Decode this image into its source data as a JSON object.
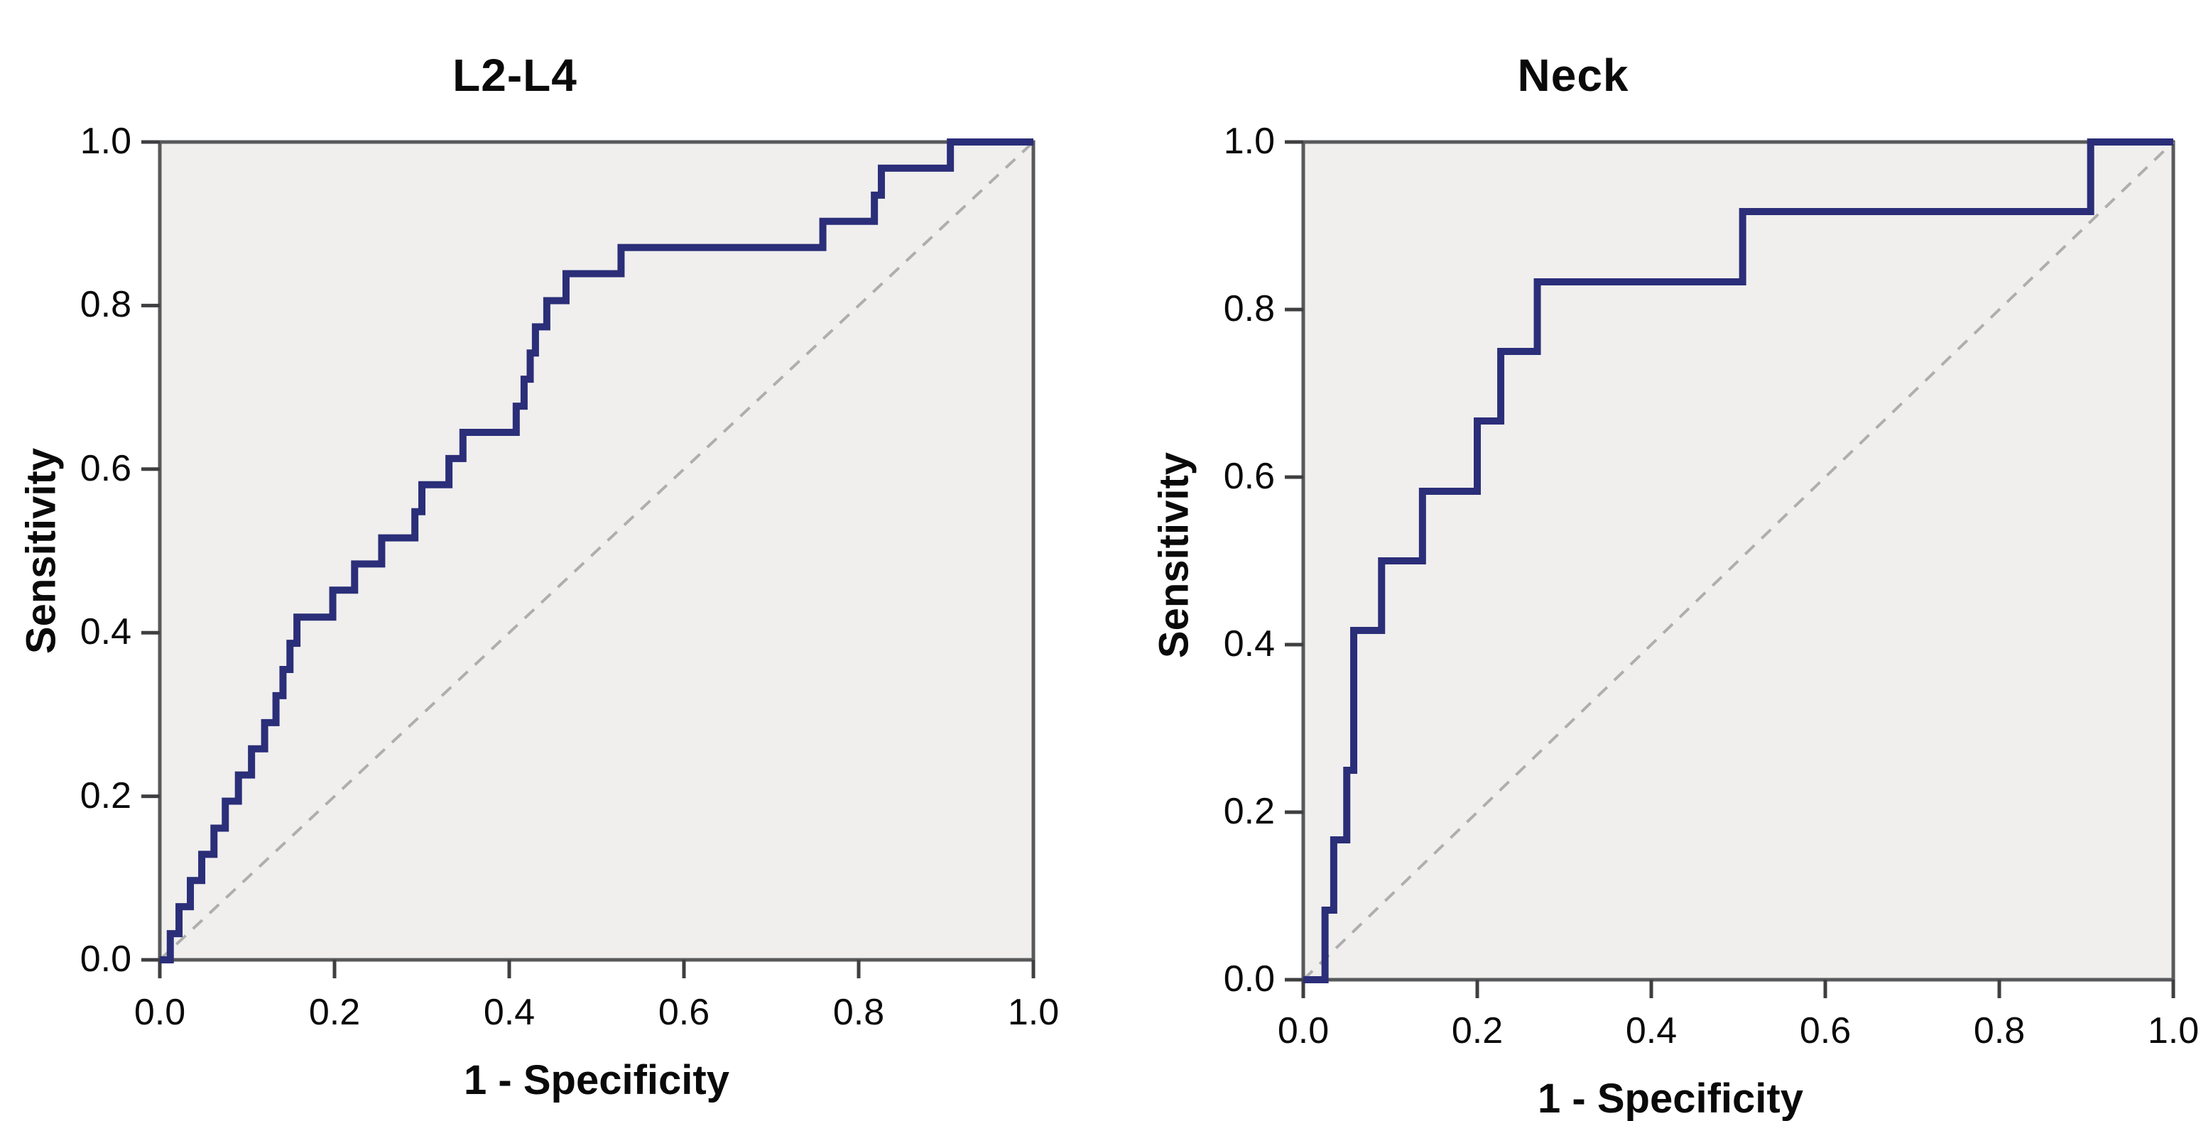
{
  "figure": {
    "description": "Two ROC curve panels"
  },
  "colors": {
    "curve": "#2b2e78",
    "diagonal": "#aeaeae",
    "plot_background": "#f0efee",
    "frame": "#58595b",
    "tick": "#3f3f41",
    "text": "#0a0a0a",
    "page_background": "#ffffff"
  },
  "charts": [
    {
      "title": "L2-L4",
      "x_axis_label": "1 - Specificity",
      "y_axis_label": "Sensitivity",
      "x_tick_labels": [
        "0.0",
        "0.2",
        "0.4",
        "0.6",
        "0.8",
        "1.0"
      ],
      "y_tick_labels": [
        "1.0",
        "0.8",
        "0.6",
        "0.4",
        "0.2",
        "0.0"
      ]
    },
    {
      "title": "Neck",
      "x_axis_label": "1 - Specificity",
      "y_axis_label": "Sensitivity",
      "x_tick_labels": [
        "0.0",
        "0.2",
        "0.4",
        "0.6",
        "0.8",
        "1.0"
      ],
      "y_tick_labels": [
        "1.0",
        "0.8",
        "0.6",
        "0.4",
        "0.2",
        "0.0"
      ]
    }
  ],
  "chart_data": [
    {
      "type": "line",
      "title": "L2-L4",
      "xlabel": "1 - Specificity",
      "ylabel": "Sensitivity",
      "xlim": [
        0,
        1
      ],
      "ylim": [
        0,
        1
      ],
      "x_tick_values": [
        0,
        0.2,
        0.4,
        0.6,
        0.8,
        1.0
      ],
      "y_tick_values": [
        0,
        0.2,
        0.4,
        0.6,
        0.8,
        1.0
      ],
      "grid": false,
      "legend": "none",
      "series": [
        {
          "name": "ROC curve",
          "style": "solid-step",
          "points": [
            [
              0,
              0
            ],
            [
              0.012,
              0
            ],
            [
              0.012,
              0.032
            ],
            [
              0.022,
              0.032
            ],
            [
              0.022,
              0.065
            ],
            [
              0.035,
              0.065
            ],
            [
              0.035,
              0.097
            ],
            [
              0.048,
              0.097
            ],
            [
              0.048,
              0.129
            ],
            [
              0.062,
              0.129
            ],
            [
              0.062,
              0.161
            ],
            [
              0.075,
              0.161
            ],
            [
              0.075,
              0.194
            ],
            [
              0.09,
              0.194
            ],
            [
              0.09,
              0.226
            ],
            [
              0.105,
              0.226
            ],
            [
              0.105,
              0.258
            ],
            [
              0.12,
              0.258
            ],
            [
              0.12,
              0.29
            ],
            [
              0.133,
              0.29
            ],
            [
              0.133,
              0.323
            ],
            [
              0.141,
              0.323
            ],
            [
              0.141,
              0.355
            ],
            [
              0.149,
              0.355
            ],
            [
              0.149,
              0.387
            ],
            [
              0.157,
              0.387
            ],
            [
              0.157,
              0.419
            ],
            [
              0.198,
              0.419
            ],
            [
              0.198,
              0.452
            ],
            [
              0.223,
              0.452
            ],
            [
              0.223,
              0.484
            ],
            [
              0.254,
              0.484
            ],
            [
              0.254,
              0.516
            ],
            [
              0.292,
              0.516
            ],
            [
              0.292,
              0.548
            ],
            [
              0.3,
              0.548
            ],
            [
              0.3,
              0.581
            ],
            [
              0.331,
              0.581
            ],
            [
              0.331,
              0.613
            ],
            [
              0.347,
              0.613
            ],
            [
              0.347,
              0.645
            ],
            [
              0.408,
              0.645
            ],
            [
              0.408,
              0.677
            ],
            [
              0.417,
              0.677
            ],
            [
              0.417,
              0.71
            ],
            [
              0.424,
              0.71
            ],
            [
              0.424,
              0.742
            ],
            [
              0.43,
              0.742
            ],
            [
              0.43,
              0.774
            ],
            [
              0.443,
              0.774
            ],
            [
              0.443,
              0.806
            ],
            [
              0.465,
              0.806
            ],
            [
              0.465,
              0.839
            ],
            [
              0.528,
              0.839
            ],
            [
              0.528,
              0.871
            ],
            [
              0.759,
              0.871
            ],
            [
              0.759,
              0.903
            ],
            [
              0.818,
              0.903
            ],
            [
              0.818,
              0.935
            ],
            [
              0.826,
              0.935
            ],
            [
              0.826,
              0.968
            ],
            [
              0.905,
              0.968
            ],
            [
              0.905,
              1
            ],
            [
              1,
              1
            ]
          ]
        },
        {
          "name": "Reference diagonal",
          "style": "dashed",
          "points": [
            [
              0,
              0
            ],
            [
              1,
              1
            ]
          ]
        }
      ]
    },
    {
      "type": "line",
      "title": "Neck",
      "xlabel": "1 - Specificity",
      "ylabel": "Sensitivity",
      "xlim": [
        0,
        1
      ],
      "ylim": [
        0,
        1
      ],
      "x_tick_values": [
        0,
        0.2,
        0.4,
        0.6,
        0.8,
        1.0
      ],
      "y_tick_values": [
        0,
        0.2,
        0.4,
        0.6,
        0.8,
        1.0
      ],
      "grid": false,
      "legend": "none",
      "series": [
        {
          "name": "ROC curve",
          "style": "solid-step",
          "points": [
            [
              0,
              0
            ],
            [
              0.025,
              0
            ],
            [
              0.025,
              0.083
            ],
            [
              0.035,
              0.083
            ],
            [
              0.035,
              0.167
            ],
            [
              0.05,
              0.167
            ],
            [
              0.05,
              0.25
            ],
            [
              0.058,
              0.25
            ],
            [
              0.058,
              0.417
            ],
            [
              0.09,
              0.417
            ],
            [
              0.09,
              0.5
            ],
            [
              0.137,
              0.5
            ],
            [
              0.137,
              0.583
            ],
            [
              0.2,
              0.583
            ],
            [
              0.2,
              0.667
            ],
            [
              0.227,
              0.667
            ],
            [
              0.227,
              0.75
            ],
            [
              0.269,
              0.75
            ],
            [
              0.269,
              0.833
            ],
            [
              0.505,
              0.833
            ],
            [
              0.505,
              0.917
            ],
            [
              0.905,
              0.917
            ],
            [
              0.905,
              1
            ],
            [
              1,
              1
            ]
          ]
        },
        {
          "name": "Reference diagonal",
          "style": "dashed",
          "points": [
            [
              0,
              0
            ],
            [
              1,
              1
            ]
          ]
        }
      ]
    }
  ]
}
